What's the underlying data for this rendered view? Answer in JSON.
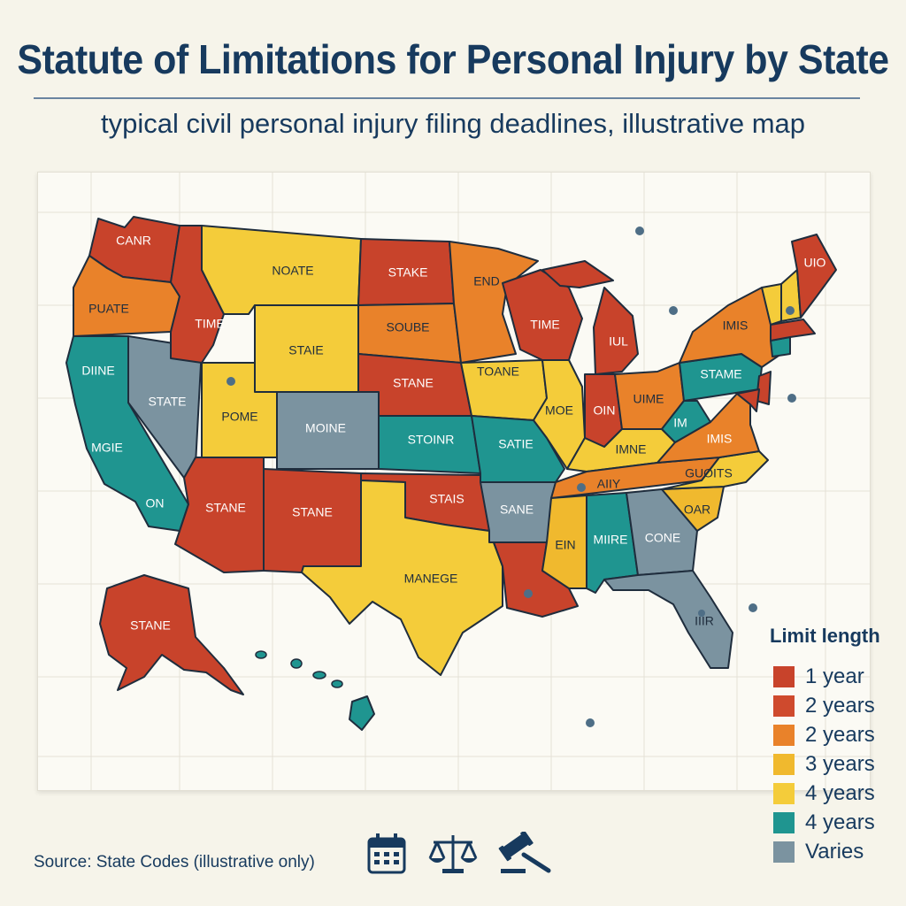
{
  "title": "Statute of Limitations for Personal Injury by State",
  "subtitle": "typical civil personal injury filing deadlines, illustrative map",
  "source": "Source: State Codes (illustrative only)",
  "colors": {
    "red": "#c8432b",
    "orange": "#e9822a",
    "gold": "#f0b92e",
    "yellow": "#f4cc3a",
    "teal": "#1f9590",
    "gray": "#7b93a0",
    "ink": "#173a5e"
  },
  "legend": {
    "title": "Limit length",
    "items": [
      {
        "label": "1 year",
        "color": "#c8432b"
      },
      {
        "label": "2 years",
        "color": "#cf4a2d"
      },
      {
        "label": "2 years",
        "color": "#e9822a"
      },
      {
        "label": "3 years",
        "color": "#f0b92e"
      },
      {
        "label": "4 years",
        "color": "#f4cc3a"
      },
      {
        "label": "4 years",
        "color": "#1f9590"
      },
      {
        "label": "Varies",
        "color": "#7b93a0"
      }
    ]
  },
  "states": {
    "wa": {
      "label": "CANR",
      "color": "red"
    },
    "or": {
      "label": "PUATE",
      "color": "orange"
    },
    "ca": {
      "label": "DIINE",
      "color": "teal"
    },
    "ca2": {
      "label": "MGIE"
    },
    "ca3": {
      "label": "ON"
    },
    "nv": {
      "label": "STATE",
      "color": "gray"
    },
    "id": {
      "label": "TIME",
      "color": "red"
    },
    "mt": {
      "label": "NOATE",
      "color": "yellow"
    },
    "wy": {
      "label": "STAIE",
      "color": "yellow"
    },
    "ut": {
      "label": "POME",
      "color": "yellow"
    },
    "co": {
      "label": "MOINE",
      "color": "gray"
    },
    "az": {
      "label": "STANE",
      "color": "red"
    },
    "nm": {
      "label": "STANE",
      "color": "red"
    },
    "nd": {
      "label": "STAKE",
      "color": "red"
    },
    "sd": {
      "label": "SOUBE",
      "color": "orange"
    },
    "ne": {
      "label": "STANE",
      "color": "red"
    },
    "ks": {
      "label": "STOINR",
      "color": "teal"
    },
    "ok": {
      "label": "STAIS",
      "color": "red"
    },
    "tx": {
      "label": "MANEGE",
      "color": "yellow"
    },
    "mn": {
      "label": "END",
      "color": "orange"
    },
    "ia": {
      "label": "TOANE",
      "color": "yellow"
    },
    "mo": {
      "label": "SATIE",
      "color": "teal"
    },
    "ar": {
      "label": "SANE",
      "color": "gray"
    },
    "la": {
      "label": "",
      "color": "red"
    },
    "wi": {
      "label": "TIME",
      "color": "red"
    },
    "il": {
      "label": "MOE",
      "color": "yellow"
    },
    "mi": {
      "label": "IUL",
      "color": "red"
    },
    "in": {
      "label": "OIN",
      "color": "red"
    },
    "oh": {
      "label": "UIME",
      "color": "orange"
    },
    "ky": {
      "label": "IMNE",
      "color": "yellow"
    },
    "tn": {
      "label": "AIIY",
      "color": "orange"
    },
    "ms": {
      "label": "EIN",
      "color": "gold"
    },
    "al": {
      "label": "MIIRE",
      "color": "teal"
    },
    "ga": {
      "label": "CONE",
      "color": "gray"
    },
    "fl": {
      "label": "IIIR",
      "color": "gray"
    },
    "sc": {
      "label": "OAR",
      "color": "gold"
    },
    "nc": {
      "label": "GUOITS",
      "color": "yellow"
    },
    "va": {
      "label": "IMIS",
      "color": "orange"
    },
    "wv": {
      "label": "IM",
      "color": "teal"
    },
    "pa": {
      "label": "STAME",
      "color": "teal"
    },
    "ny": {
      "label": "IMIS",
      "color": "orange"
    },
    "me": {
      "label": "UIO",
      "color": "red"
    },
    "ak": {
      "label": "STANE",
      "color": "red"
    },
    "hi": {
      "label": "",
      "color": "teal"
    }
  },
  "icons": [
    "calendar-icon",
    "scales-of-justice-icon",
    "gavel-icon"
  ]
}
